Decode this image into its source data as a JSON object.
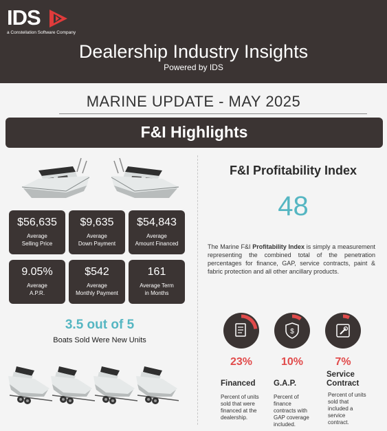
{
  "brand": {
    "logo_text": "IDS",
    "tagline": "a Constellation Software Company",
    "accent_color": "#e03b3b"
  },
  "header": {
    "title": "Dealership Industry Insights",
    "subtitle": "Powered by IDS"
  },
  "update_title": "MARINE UPDATE - MAY 2025",
  "section_title": "F&I Highlights",
  "stats": [
    {
      "value": "$56,635",
      "label_1": "Average",
      "label_2": "Selling Price"
    },
    {
      "value": "$9,635",
      "label_1": "Average",
      "label_2": "Down Payment"
    },
    {
      "value": "$54,843",
      "label_1": "Average",
      "label_2": "Amount Financed"
    },
    {
      "value": "9.05%",
      "label_1": "Average",
      "label_2": "A.P.R."
    },
    {
      "value": "$542",
      "label_1": "Average",
      "label_2": "Monthly Payment"
    },
    {
      "value": "161",
      "label_1": "Average Term",
      "label_2": "in Months"
    }
  ],
  "new_units": {
    "value": "3.5 out of 5",
    "label": "Boats Sold Were New Units",
    "new_fraction": 0.7
  },
  "profitability": {
    "title": "F&I Profitability Index",
    "value": "48",
    "desc_prefix": "The Marine F&I ",
    "desc_bold": "Profitability Index",
    "desc_suffix": " is simply a measurement representing the combined total of the penetration percentages for finance, GAP, service contracts, paint & fabric protection and all other ancillary products."
  },
  "penetration": [
    {
      "percent_text": "23%",
      "fraction": 0.23,
      "title_1": "Financed",
      "title_2": "",
      "icon": "document-icon",
      "desc": [
        "Percent of units",
        "sold that were",
        "financed at the",
        "dealership."
      ]
    },
    {
      "percent_text": "10%",
      "fraction": 0.1,
      "title_1": "G.A.P.",
      "title_2": "",
      "icon": "shield-dollar-icon",
      "desc": [
        "Percent of",
        "finance",
        "contracts with",
        "GAP coverage",
        "included."
      ]
    },
    {
      "percent_text": "7%",
      "fraction": 0.07,
      "title_1": "Service",
      "title_2": "Contract",
      "icon": "wrench-icon",
      "desc": [
        "Percent of units",
        "sold that",
        "included a",
        "service",
        "contract."
      ]
    }
  ],
  "colors": {
    "dark": "#3b3433",
    "teal": "#55b6c2",
    "red": "#e14b4b"
  }
}
